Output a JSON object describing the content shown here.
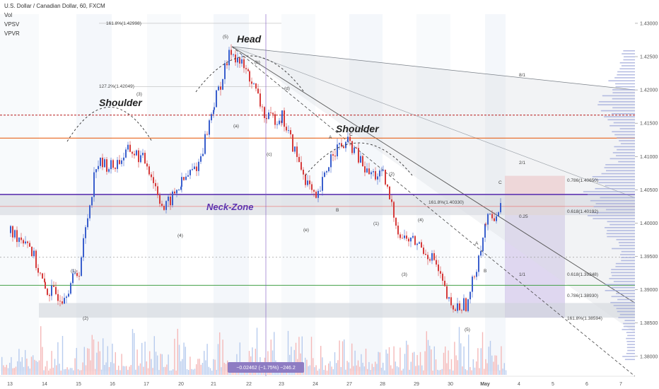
{
  "header": {
    "symbol": "U.S. Dollar / Canadian Dollar, 60, FXCM",
    "indicators": [
      "Vol",
      "VPSV",
      "VPVR"
    ]
  },
  "chart_data": {
    "type": "line",
    "title": "U.S. Dollar / Canadian Dollar, 60, FXCM",
    "xlabel": "",
    "ylabel": "",
    "x_ticks": [
      "13",
      "14",
      "15",
      "16",
      "17",
      "20",
      "21",
      "22",
      "23",
      "24",
      "27",
      "28",
      "29",
      "30",
      "May",
      "4",
      "5",
      "6",
      "7"
    ],
    "y_ticks": [
      "1.43000",
      "1.42500",
      "1.42000",
      "1.41500",
      "1.41000",
      "1.40500",
      "1.40000",
      "1.39500",
      "1.39000",
      "1.38500",
      "1.38000"
    ],
    "ylim": [
      1.377,
      1.4335
    ],
    "grid": false,
    "series": [
      {
        "x": [
          "13",
          "13",
          "14",
          "14",
          "15",
          "15",
          "16",
          "16",
          "17",
          "17",
          "20",
          "20",
          "21",
          "21",
          "22",
          "22",
          "23",
          "23",
          "24",
          "24",
          "27",
          "27",
          "28",
          "28",
          "29",
          "29",
          "30",
          "30",
          "May",
          "May"
        ],
        "values": [
          1.3985,
          1.3975,
          1.39,
          1.389,
          1.393,
          1.409,
          1.4085,
          1.411,
          1.409,
          1.402,
          1.406,
          1.409,
          1.418,
          1.426,
          1.422,
          1.4155,
          1.416,
          1.409,
          1.403,
          1.411,
          1.412,
          1.4075,
          1.407,
          1.398,
          1.397,
          1.3945,
          1.387,
          1.388,
          1.4,
          1.4025
        ]
      }
    ],
    "price_labels": [
      {
        "text": "1.41621",
        "color": "#b71c1c"
      },
      {
        "text": "1.41276",
        "color": "#e65100"
      },
      {
        "text": "1.40713",
        "color": "#ef5350"
      },
      {
        "text": "1.40430",
        "color": "#5e35b1"
      },
      {
        "text": "1.40250",
        "color": "#ef5350"
      },
      {
        "text": "01:13",
        "color": "#ef5350"
      },
      {
        "text": "1.40153",
        "color": "#3949ab"
      },
      {
        "text": "1.40143",
        "color": "#37474f"
      },
      {
        "text": "1.39487",
        "color": "#2e7d32"
      },
      {
        "text": "1.39066",
        "color": "#43a047"
      },
      {
        "text": "1.38581",
        "color": "#7e57c2"
      }
    ],
    "annotations": [
      {
        "text": "Head",
        "style": "big"
      },
      {
        "text": "Shoulder",
        "style": "big"
      },
      {
        "text": "Shoulder",
        "style": "big"
      },
      {
        "text": "Neck-Zone",
        "style": "neck"
      },
      {
        "text": "(5)"
      },
      {
        "text": "(b)"
      },
      {
        "text": "(d)"
      },
      {
        "text": "(a)"
      },
      {
        "text": "(c)"
      },
      {
        "text": "(e)"
      },
      {
        "text": "(3)"
      },
      {
        "text": "(4)"
      },
      {
        "text": "(1)"
      },
      {
        "text": "(2)"
      },
      {
        "text": "(2)"
      },
      {
        "text": "(1)"
      },
      {
        "text": "(3)"
      },
      {
        "text": "(4)"
      },
      {
        "text": "(5)"
      },
      {
        "text": "A"
      },
      {
        "text": "B"
      },
      {
        "text": "C"
      },
      {
        "text": "A"
      },
      {
        "text": "B"
      },
      {
        "text": "C"
      },
      {
        "text": "161.8%(1.42998)"
      },
      {
        "text": "127.2%(1.42049)"
      },
      {
        "text": "161.8%(1.40330)"
      },
      {
        "text": "0.786(1.40650)"
      },
      {
        "text": "0.618(1.40192)"
      },
      {
        "text": "0.618(1.39248)"
      },
      {
        "text": "0.786(1.38930)"
      },
      {
        "text": "161.8%(1.38594)"
      },
      {
        "text": "8/1"
      },
      {
        "text": "2/1"
      },
      {
        "text": "1/1"
      },
      {
        "text": "0.25"
      }
    ],
    "measure_label": "−0.02462 (−1.75%) −246.2"
  }
}
